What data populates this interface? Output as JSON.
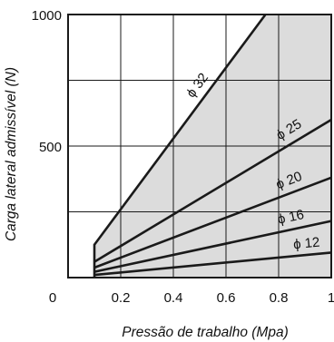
{
  "chart_data": {
    "type": "area",
    "title": "",
    "xlabel": "Pressão de trabalho (Mpa)",
    "ylabel": "Carga lateral admissível (N)",
    "xlim": [
      0,
      1
    ],
    "ylim": [
      0,
      1000
    ],
    "x_ticks": [
      "0",
      "0.2",
      "0.4",
      "0.6",
      "0.8",
      "1"
    ],
    "y_ticks": [
      "500",
      "1000"
    ],
    "grid": true,
    "colors": {
      "fill": "#dcdcdc",
      "line": "#1a1a1a",
      "grid": "#1a1a1a"
    },
    "series": [
      {
        "name": "ϕ 32",
        "x": [
          0.1,
          0.1,
          0.75
        ],
        "y": [
          0,
          125,
          1000
        ]
      },
      {
        "name": "ϕ 25",
        "x": [
          0.1,
          1.0
        ],
        "y": [
          60,
          600
        ]
      },
      {
        "name": "ϕ 20",
        "x": [
          0.1,
          1.0
        ],
        "y": [
          38,
          380
        ]
      },
      {
        "name": "ϕ 16",
        "x": [
          0.1,
          1.0
        ],
        "y": [
          22,
          215
        ]
      },
      {
        "name": "ϕ 12",
        "x": [
          0.1,
          1.0
        ],
        "y": [
          10,
          95
        ]
      }
    ]
  }
}
